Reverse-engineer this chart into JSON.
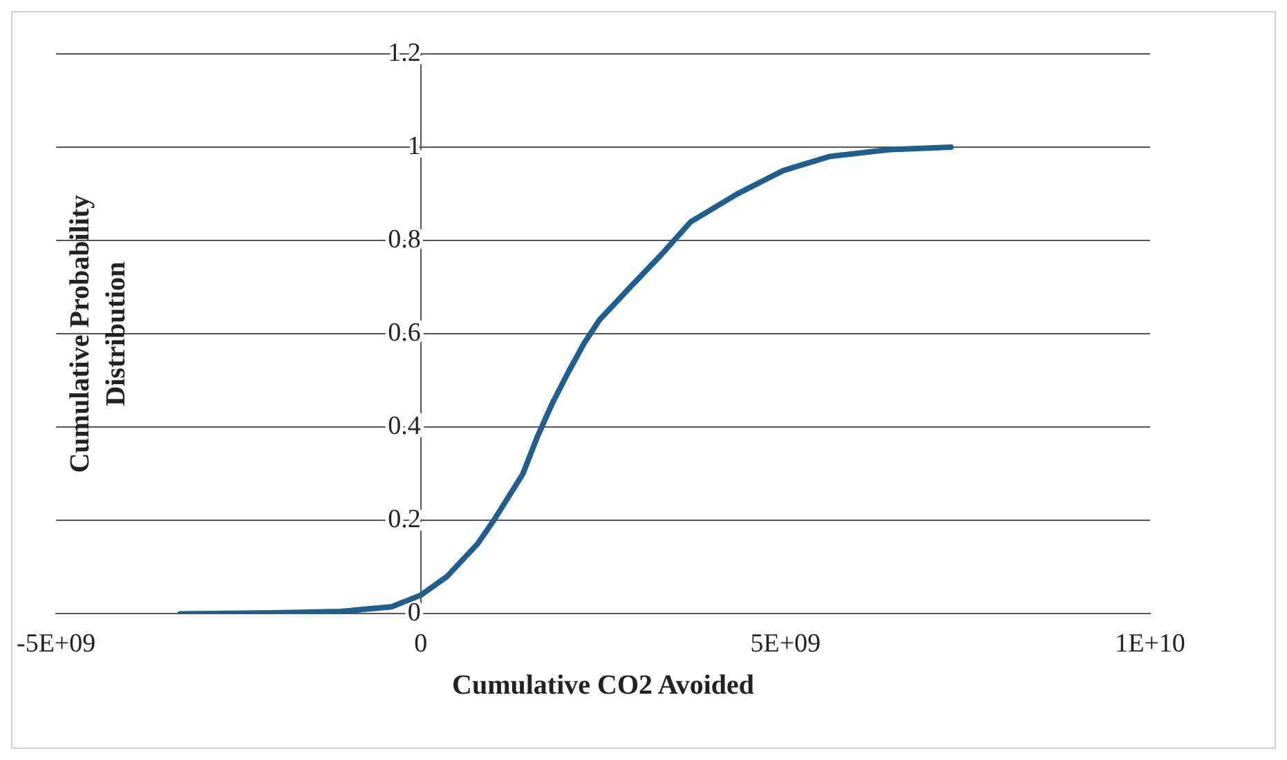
{
  "chart_data": {
    "type": "line",
    "xlabel": "Cumulative CO2 Avoided",
    "ylabel": "Cumulative Probability Distribution",
    "x": [
      -3300000000.0,
      -2000000000.0,
      -1100000000.0,
      -400000000.0,
      0,
      360000000.0,
      780000000.0,
      1000000000.0,
      1400000000.0,
      1600000000.0,
      1800000000.0,
      2030000000.0,
      2240000000.0,
      2450000000.0,
      2870000000.0,
      3300000000.0,
      3700000000.0,
      4340000000.0,
      4970000000.0,
      5600000000.0,
      6440000000.0,
      7270000000.0
    ],
    "series": [
      {
        "color": "#1f5f8f",
        "values": [
          0,
          0.002,
          0.005,
          0.015,
          0.04,
          0.08,
          0.15,
          0.2,
          0.3,
          0.38,
          0.45,
          0.52,
          0.58,
          0.63,
          0.7,
          0.77,
          0.84,
          0.9,
          0.95,
          0.98,
          0.995,
          1
        ]
      }
    ],
    "xlim": [
      -5000000000.0,
      10000000000.0
    ],
    "xticks": [
      {
        "value": -5000000000.0,
        "label": "-5E+09"
      },
      0,
      {
        "value": 5000000000.0,
        "label": "5E+09"
      },
      {
        "value": 10000000000.0,
        "label": "1E+10"
      }
    ],
    "ylim": [
      0,
      1.2
    ],
    "yticks": [
      0,
      0.2,
      0.4,
      0.6,
      0.8,
      1,
      1.2
    ],
    "grid": "y",
    "legend": false,
    "marker": "none",
    "line_style": "solid"
  }
}
